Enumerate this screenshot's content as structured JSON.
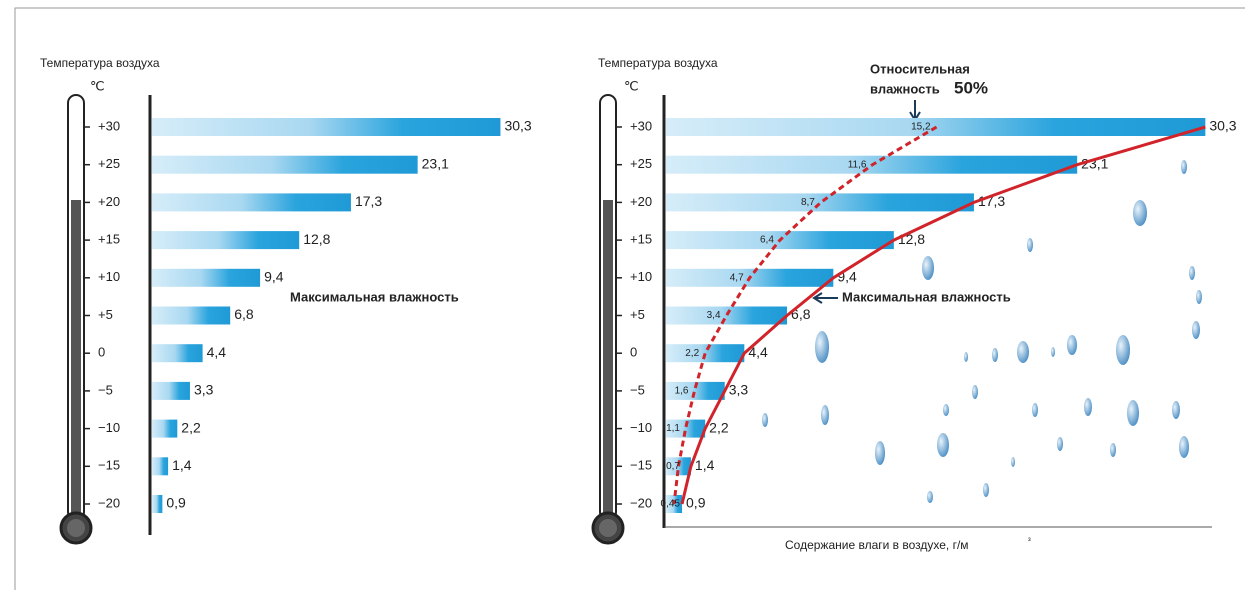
{
  "chart_data": [
    {
      "type": "bar",
      "orientation": "horizontal",
      "y_label": "Температура воздуха",
      "unit": "℃",
      "categories": [
        "+30",
        "+25",
        "+20",
        "+15",
        "+10",
        "+5",
        "0",
        "−5",
        "−10",
        "−15",
        "−20"
      ],
      "values": [
        30.3,
        23.1,
        17.3,
        12.8,
        9.4,
        6.8,
        4.4,
        3.3,
        2.2,
        1.4,
        0.9
      ],
      "value_labels": [
        "30,3",
        "23,1",
        "17,3",
        "12,8",
        "9,4",
        "6,8",
        "4,4",
        "3,3",
        "2,2",
        "1,4",
        "0,9"
      ],
      "color": "#29a3dc",
      "annotation": "Максимальная влажность"
    },
    {
      "type": "bar",
      "orientation": "horizontal",
      "y_label": "Температура воздуха",
      "unit": "℃",
      "x_label": "Содержание влаги в воздухе, г/м",
      "x_label_sup": "³",
      "categories": [
        "+30",
        "+25",
        "+20",
        "+15",
        "+10",
        "+5",
        "0",
        "−5",
        "−10",
        "−15",
        "−20"
      ],
      "series": [
        {
          "name": "Максимальная влажность",
          "color": "#29a3dc",
          "curve_color": "#d0232a",
          "values": [
            30.3,
            23.1,
            17.3,
            12.8,
            9.4,
            6.8,
            4.4,
            3.3,
            2.2,
            1.4,
            0.9
          ],
          "value_labels": [
            "30,3",
            "23,1",
            "17,3",
            "12,8",
            "9,4",
            "6,8",
            "4,4",
            "3,3",
            "2,2",
            "1,4",
            "0,9"
          ]
        },
        {
          "color": "#d0232a",
          "values": [
            15.2,
            11.6,
            8.7,
            6.4,
            4.7,
            3.4,
            2.2,
            1.6,
            1.1,
            0.7,
            0.45
          ],
          "value_labels": [
            "15,2",
            "11,6",
            "8,7",
            "6,4",
            "4,7",
            "3,4",
            "2,2",
            "1,6",
            "1,1",
            "0,7",
            "0,45"
          ]
        }
      ],
      "relative_label": [
        "Относительная",
        "влажность"
      ],
      "relative_percent": "50%"
    }
  ]
}
